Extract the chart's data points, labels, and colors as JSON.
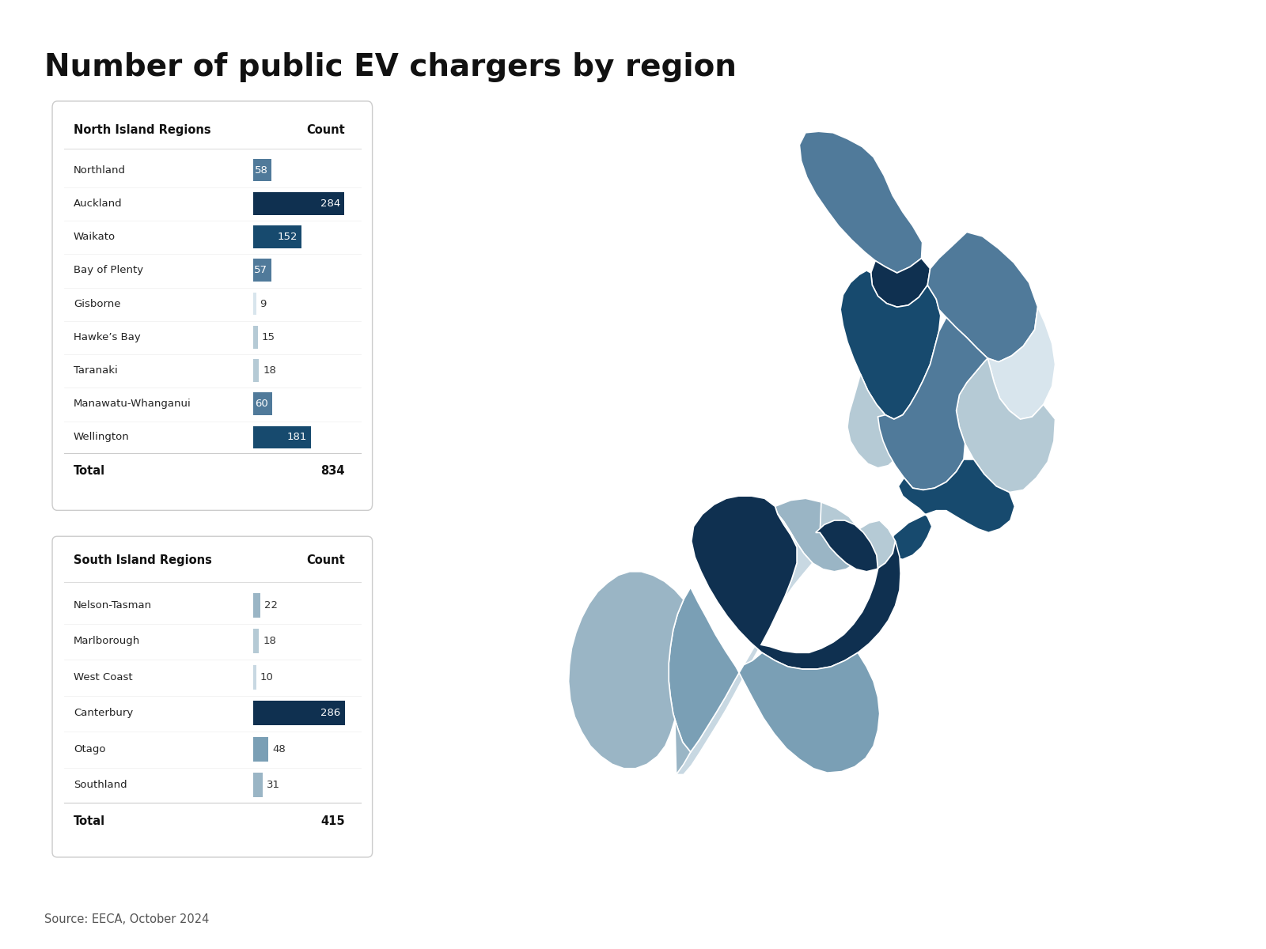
{
  "title": "Number of public EV chargers by region",
  "title_fontsize": 28,
  "title_fontweight": "bold",
  "source_text": "Source: EECA, October 2024",
  "background_color": "#ffffff",
  "north_island": {
    "header": "North Island Regions",
    "col_header": "Count",
    "regions": [
      "Northland",
      "Auckland",
      "Waikato",
      "Bay of Plenty",
      "Gisborne",
      "Hawke’s Bay",
      "Taranaki",
      "Manawatu-Whanganui",
      "Wellington"
    ],
    "counts": [
      58,
      284,
      152,
      57,
      9,
      15,
      18,
      60,
      181
    ],
    "total": 834
  },
  "south_island": {
    "header": "South Island Regions",
    "col_header": "Count",
    "regions": [
      "Nelson-Tasman",
      "Marlborough",
      "West Coast",
      "Canterbury",
      "Otago",
      "Southland"
    ],
    "counts": [
      22,
      18,
      10,
      286,
      48,
      31
    ],
    "total": 415
  },
  "table_border_color": "#cccccc",
  "table_bg": "#ffffff"
}
